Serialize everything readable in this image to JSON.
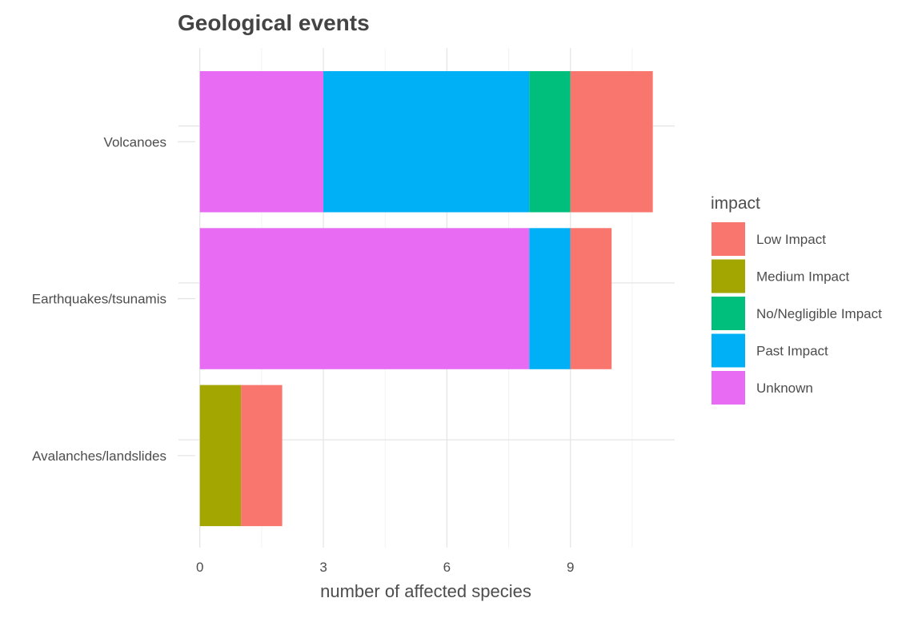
{
  "chart_data": {
    "type": "bar",
    "orientation": "horizontal",
    "stacked": true,
    "title": "Geological events",
    "xlabel": "number of affected species",
    "ylabel": "",
    "xlim": [
      0,
      11.5
    ],
    "x_ticks": [
      0,
      3,
      6,
      9
    ],
    "grid": true,
    "legend_position": "right",
    "legend_title": "impact",
    "categories": [
      "Volcanoes",
      "Earthquakes/tsunamis",
      "Avalanches/landslides"
    ],
    "series": [
      {
        "name": "Unknown",
        "color": "#E76BF3",
        "values": [
          3,
          8,
          0
        ]
      },
      {
        "name": "Past Impact",
        "color": "#00B0F6",
        "values": [
          5,
          1,
          0
        ]
      },
      {
        "name": "No/Negligible Impact",
        "color": "#00BF7D",
        "values": [
          1,
          0,
          0
        ]
      },
      {
        "name": "Medium Impact",
        "color": "#A3A500",
        "values": [
          0,
          0,
          1
        ]
      },
      {
        "name": "Low Impact",
        "color": "#F8766D",
        "values": [
          2,
          1,
          1
        ]
      }
    ],
    "legend_order": [
      "Low Impact",
      "Medium Impact",
      "No/Negligible Impact",
      "Past Impact",
      "Unknown"
    ]
  }
}
